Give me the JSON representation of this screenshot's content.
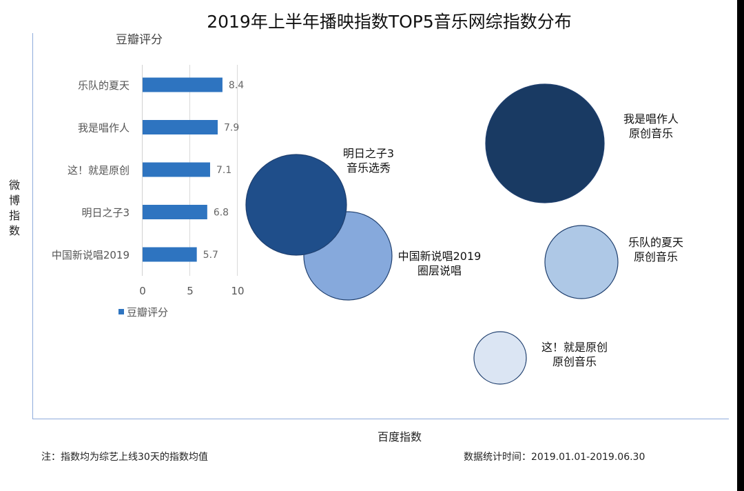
{
  "title": "2019年上半年播映指数TOP5音乐网综指数分布",
  "footnote": "注：指数均为综艺上线30天的指数均值",
  "date_note": "数据统计时间：2019.01.01-2019.06.30",
  "colors": {
    "bar": "#2e74c0",
    "axis": "#8eaadb",
    "bubble_dark": "#193a63",
    "bubble_medium": "#1f4e8a",
    "bubble_light_blue": "#86a9dc",
    "bubble_pale": "#aec8e6",
    "bubble_lightest": "#dbe5f3"
  },
  "chart_data": [
    {
      "type": "scatter",
      "subtype": "bubble",
      "xlabel": "百度指数",
      "ylabel": "微博指数",
      "bubbles": [
        {
          "name": "我是唱作人",
          "category": "原创音乐",
          "color": "#193a63"
        },
        {
          "name": "明日之子3",
          "category": "音乐选秀",
          "color": "#1f4e8a"
        },
        {
          "name": "中国新说唱2019",
          "category": "圈层说唱",
          "color": "#86a9dc"
        },
        {
          "name": "乐队的夏天",
          "category": "原创音乐",
          "color": "#aec8e6"
        },
        {
          "name": "这！就是原创",
          "category": "原创音乐",
          "color": "#dbe5f3"
        }
      ]
    },
    {
      "type": "bar",
      "orientation": "horizontal",
      "title": "豆瓣评分",
      "categories": [
        "乐队的夏天",
        "我是唱作人",
        "这！就是原创",
        "明日之子3",
        "中国新说唱2019"
      ],
      "values": [
        8.4,
        7.9,
        7.1,
        6.8,
        5.7
      ],
      "value_labels": [
        "8.4",
        "7.9",
        "7.1",
        "6.8",
        "5.7"
      ],
      "xlim": [
        0,
        10
      ],
      "xticks": [
        "0",
        "5",
        "10"
      ],
      "legend": {
        "label": "豆瓣评分",
        "position": "bottom-left"
      }
    }
  ]
}
